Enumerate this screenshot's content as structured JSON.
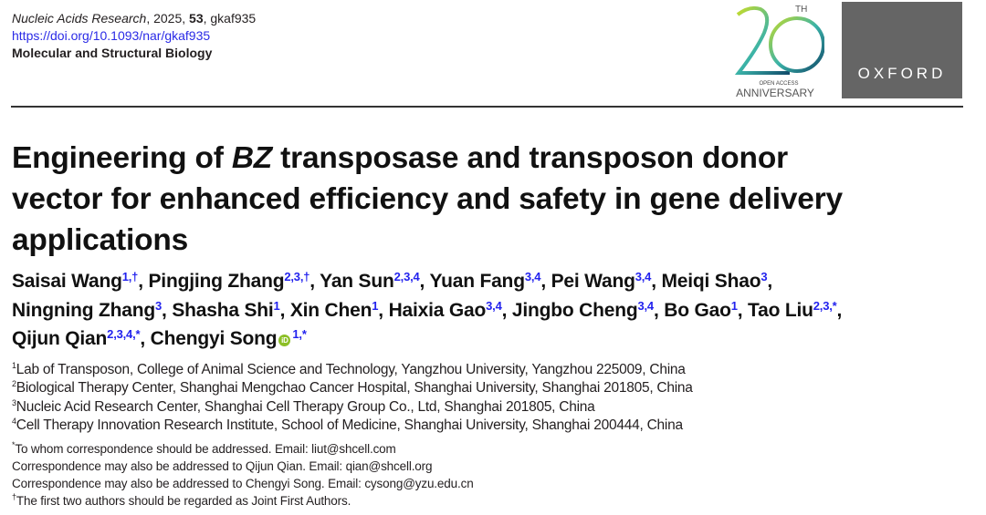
{
  "header": {
    "journal": "Nucleic Acids Research",
    "year_sep": ", 2025, ",
    "volume": "53",
    "article_id": ", gkaf935",
    "doi": "https://doi.org/10.1093/nar/gkaf935",
    "section": "Molecular and Structural Biology"
  },
  "logos": {
    "anniversary_number": "20",
    "anniversary_suffix": "TH",
    "anniversary_line1": "OPEN ACCESS",
    "anniversary_line2": "ANNIVERSARY",
    "publisher": "OXFORD"
  },
  "title": {
    "part1": "Engineering of ",
    "italic": "BZ",
    "part2": " transposase and transposon donor",
    "line2": "vector for enhanced efficiency and safety in gene delivery",
    "line3": "applications"
  },
  "authors": [
    [
      {
        "name": "Saisai Wang",
        "sup": "1,†"
      },
      {
        "name": "Pingjing Zhang",
        "sup": "2,3,†"
      },
      {
        "name": "Yan Sun",
        "sup": "2,3,4"
      },
      {
        "name": "Yuan Fang",
        "sup": "3,4"
      },
      {
        "name": "Pei Wang",
        "sup": "3,4"
      },
      {
        "name": "Meiqi Shao",
        "sup": "3"
      }
    ],
    [
      {
        "name": "Ningning Zhang",
        "sup": "3"
      },
      {
        "name": "Shasha Shi",
        "sup": "1"
      },
      {
        "name": "Xin Chen",
        "sup": "1"
      },
      {
        "name": "Haixia Gao",
        "sup": "3,4"
      },
      {
        "name": "Jingbo Cheng",
        "sup": "3,4"
      },
      {
        "name": "Bo Gao",
        "sup": "1"
      },
      {
        "name": "Tao Liu",
        "sup": "2,3,*"
      }
    ],
    [
      {
        "name": "Qijun Qian",
        "sup": "2,3,4,*"
      },
      {
        "name": "Chengyi Song",
        "sup": "1,*",
        "orcid": true
      }
    ]
  ],
  "affiliations": [
    {
      "num": "1",
      "text": "Lab of Transposon, College of Animal Science and Technology, Yangzhou University, Yangzhou 225009, China"
    },
    {
      "num": "2",
      "text": "Biological Therapy Center, Shanghai Mengchao Cancer Hospital, Shanghai University, Shanghai 201805, China"
    },
    {
      "num": "3",
      "text": "Nucleic Acid Research Center, Shanghai Cell Therapy Group Co., Ltd, Shanghai 201805, China"
    },
    {
      "num": "4",
      "text": "Cell Therapy Innovation Research Institute, School of Medicine, Shanghai University, Shanghai 200444, China"
    }
  ],
  "notes": [
    {
      "mark": "*",
      "text": "To whom correspondence should be addressed. Email: liut@shcell.com"
    },
    {
      "mark": "",
      "text": "Correspondence may also be addressed to Qijun Qian. Email: qian@shcell.org"
    },
    {
      "mark": "",
      "text": "Correspondence may also be addressed to Chengyi Song. Email: cysong@yzu.edu.cn"
    },
    {
      "mark": "†",
      "text": "The first two authors should be regarded as Joint First Authors."
    }
  ],
  "colors": {
    "link": "#2a2ae6",
    "superscript": "#2222ee",
    "oxford_bg": "#656565",
    "orcid": "#8cbf26"
  }
}
